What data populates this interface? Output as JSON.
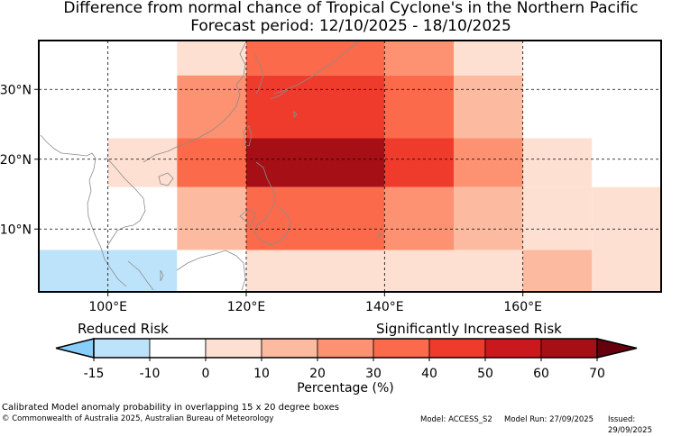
{
  "title": {
    "line1": "Difference from normal chance of Tropical Cyclone's in the Northern Pacific",
    "line2": "Forecast period: 12/10/2025 - 18/10/2025"
  },
  "map": {
    "lon_range": [
      90,
      180
    ],
    "lat_range": [
      1,
      37
    ],
    "lon_ticks": [
      {
        "value": 100,
        "label": "100°E"
      },
      {
        "value": 120,
        "label": "120°E"
      },
      {
        "value": 140,
        "label": "140°E"
      },
      {
        "value": 160,
        "label": "160°E"
      }
    ],
    "lat_ticks": [
      {
        "value": 10,
        "label": "10°N"
      },
      {
        "value": 20,
        "label": "20°N"
      },
      {
        "value": 30,
        "label": "30°N"
      }
    ],
    "cells": [
      {
        "lon": [
          90,
          110
        ],
        "lat": [
          32,
          37
        ],
        "value": -10
      },
      {
        "lon": [
          110,
          120
        ],
        "lat": [
          32,
          37
        ],
        "value": 5
      },
      {
        "lon": [
          120,
          140
        ],
        "lat": [
          32,
          37
        ],
        "value": 35
      },
      {
        "lon": [
          140,
          150
        ],
        "lat": [
          32,
          37
        ],
        "value": 25
      },
      {
        "lon": [
          150,
          160
        ],
        "lat": [
          32,
          37
        ],
        "value": 5
      },
      {
        "lon": [
          160,
          170
        ],
        "lat": [
          32,
          37
        ],
        "value": -1
      },
      {
        "lon": [
          170,
          180
        ],
        "lat": [
          32,
          37
        ],
        "value": -5
      },
      {
        "lon": [
          90,
          100
        ],
        "lat": [
          23,
          32
        ],
        "value": -5
      },
      {
        "lon": [
          100,
          110
        ],
        "lat": [
          23,
          32
        ],
        "value": -1
      },
      {
        "lon": [
          110,
          120
        ],
        "lat": [
          23,
          32
        ],
        "value": 25
      },
      {
        "lon": [
          120,
          140
        ],
        "lat": [
          23,
          32
        ],
        "value": 45
      },
      {
        "lon": [
          140,
          150
        ],
        "lat": [
          23,
          32
        ],
        "value": 35
      },
      {
        "lon": [
          150,
          160
        ],
        "lat": [
          23,
          32
        ],
        "value": 15
      },
      {
        "lon": [
          160,
          180
        ],
        "lat": [
          23,
          32
        ],
        "value": -1
      },
      {
        "lon": [
          90,
          100
        ],
        "lat": [
          16,
          23
        ],
        "value": -1
      },
      {
        "lon": [
          100,
          110
        ],
        "lat": [
          16,
          23
        ],
        "value": 5
      },
      {
        "lon": [
          110,
          120
        ],
        "lat": [
          16,
          23
        ],
        "value": 35
      },
      {
        "lon": [
          120,
          140
        ],
        "lat": [
          16,
          23
        ],
        "value": 65
      },
      {
        "lon": [
          140,
          150
        ],
        "lat": [
          16,
          23
        ],
        "value": 45
      },
      {
        "lon": [
          150,
          160
        ],
        "lat": [
          16,
          23
        ],
        "value": 25
      },
      {
        "lon": [
          160,
          170
        ],
        "lat": [
          16,
          23
        ],
        "value": 5
      },
      {
        "lon": [
          170,
          180
        ],
        "lat": [
          16,
          23
        ],
        "value": -1
      },
      {
        "lon": [
          90,
          100
        ],
        "lat": [
          7,
          16
        ],
        "value": -5
      },
      {
        "lon": [
          100,
          110
        ],
        "lat": [
          7,
          16
        ],
        "value": -1
      },
      {
        "lon": [
          110,
          120
        ],
        "lat": [
          7,
          16
        ],
        "value": 15
      },
      {
        "lon": [
          120,
          140
        ],
        "lat": [
          7,
          16
        ],
        "value": 35
      },
      {
        "lon": [
          140,
          150
        ],
        "lat": [
          7,
          16
        ],
        "value": 25
      },
      {
        "lon": [
          150,
          160
        ],
        "lat": [
          7,
          16
        ],
        "value": 15
      },
      {
        "lon": [
          160,
          170
        ],
        "lat": [
          7,
          16
        ],
        "value": 5
      },
      {
        "lon": [
          170,
          180
        ],
        "lat": [
          7,
          16
        ],
        "value": 5
      },
      {
        "lon": [
          90,
          110
        ],
        "lat": [
          1,
          7
        ],
        "value": -12
      },
      {
        "lon": [
          110,
          120
        ],
        "lat": [
          1,
          7
        ],
        "value": -5
      },
      {
        "lon": [
          120,
          160
        ],
        "lat": [
          1,
          7
        ],
        "value": 5
      },
      {
        "lon": [
          160,
          170
        ],
        "lat": [
          1,
          7
        ],
        "value": 15
      },
      {
        "lon": [
          170,
          180
        ],
        "lat": [
          1,
          7
        ],
        "value": 5
      }
    ]
  },
  "colorbar": {
    "title": "Percentage (%)",
    "reduced_label": "Reduced Risk",
    "increased_label": "Significantly Increased Risk",
    "ticks": [
      "-15",
      "-10",
      "0",
      "10",
      "20",
      "30",
      "40",
      "50",
      "60",
      "70"
    ],
    "bounds": [
      -15,
      -10,
      0,
      10,
      20,
      30,
      40,
      50,
      60,
      70
    ],
    "colors": [
      "#bde3fb",
      "#ffffff",
      "#fee0d2",
      "#fcbba1",
      "#fc9272",
      "#fb6a4a",
      "#ef3b2c",
      "#cb181d",
      "#a50f15"
    ],
    "under_color": "#87cefa",
    "over_color": "#67000d"
  },
  "footer": {
    "note": "Calibrated Model anomaly probability in overlapping 15 x 20 degree boxes",
    "copyright": "© Commonwealth of Australia 2025, Australian Bureau of Meteorology",
    "model": "Model: ACCESS_S2",
    "model_run": "Model Run: 27/09/2025",
    "issued": "Issued: 29/09/2025"
  }
}
